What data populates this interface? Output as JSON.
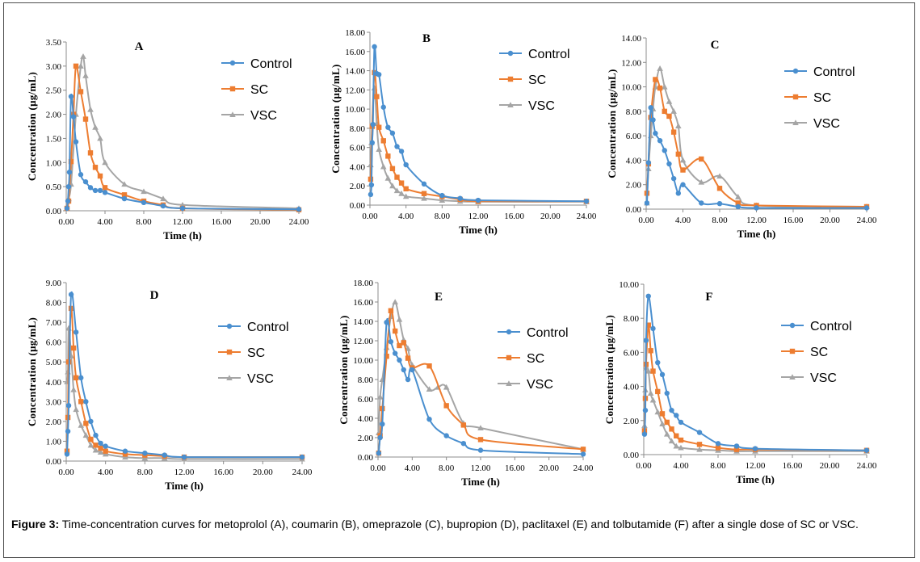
{
  "caption": {
    "label": "Figure 3:",
    "text": " Time-concentration curves for metoprolol (A), coumarin (B), omeprazole (C), bupropion (D), paclitaxel (E) and tolbutamide (F) after a single dose of SC or VSC."
  },
  "colors": {
    "Control": "#4a8fcf",
    "SC": "#ed7d31",
    "VSC": "#a5a5a5"
  },
  "chart_data": [
    {
      "type": "line",
      "title": "A",
      "xlabel": "Time (h)",
      "ylabel": "Concentration (μg/mL)",
      "xticks": [
        "0.00",
        "4.00",
        "8.00",
        "12.00",
        "16.00",
        "20.00",
        "24.00"
      ],
      "yticks": [
        "0.00",
        "0.50",
        "1.00",
        "1.50",
        "2.00",
        "2.50",
        "3.00",
        "3.50"
      ],
      "xlim": [
        0,
        24
      ],
      "ylim": [
        0,
        3.5
      ],
      "legend": [
        "Control",
        "SC",
        "VSC"
      ],
      "series": [
        {
          "name": "Control",
          "x": [
            0.08,
            0.17,
            0.25,
            0.33,
            0.5,
            0.75,
            1,
            1.5,
            2,
            2.5,
            3,
            3.5,
            4,
            6,
            8,
            10,
            12,
            24
          ],
          "y": [
            0.05,
            0.2,
            0.5,
            0.8,
            2.37,
            1.95,
            1.43,
            0.75,
            0.6,
            0.48,
            0.42,
            0.42,
            0.38,
            0.25,
            0.17,
            0.1,
            0.05,
            0.03
          ]
        },
        {
          "name": "SC",
          "x": [
            0.08,
            0.25,
            0.5,
            0.75,
            1,
            1.5,
            2,
            2.5,
            3,
            3.5,
            4,
            6,
            8,
            10,
            12,
            24
          ],
          "y": [
            0.05,
            0.2,
            1.02,
            2.0,
            3.0,
            2.47,
            1.9,
            1.2,
            0.9,
            0.72,
            0.48,
            0.33,
            0.2,
            0.12,
            0.05,
            0.02
          ]
        },
        {
          "name": "VSC",
          "x": [
            0.08,
            0.25,
            0.5,
            1,
            1.5,
            1.75,
            2,
            2.5,
            3,
            3.5,
            4,
            6,
            8,
            10,
            12,
            24
          ],
          "y": [
            0.05,
            0.25,
            0.55,
            2.0,
            3.0,
            3.2,
            2.8,
            2.1,
            1.73,
            1.5,
            1.0,
            0.55,
            0.4,
            0.25,
            0.12,
            0.05
          ]
        }
      ]
    },
    {
      "type": "line",
      "title": "B",
      "xlabel": "Time (h)",
      "ylabel": "Concentration (μg/mL)",
      "xticks": [
        "0.00",
        "4.00",
        "8.00",
        "12.00",
        "16.00",
        "20.00",
        "24.00"
      ],
      "yticks": [
        "0.00",
        "2.00",
        "4.00",
        "6.00",
        "8.00",
        "10.00",
        "12.00",
        "14.00",
        "16.00",
        "18.00"
      ],
      "xlim": [
        0,
        24
      ],
      "ylim": [
        0,
        18
      ],
      "legend": [
        "Control",
        "SC",
        "VSC"
      ],
      "series": [
        {
          "name": "Control",
          "x": [
            0.08,
            0.17,
            0.25,
            0.33,
            0.5,
            0.75,
            1,
            1.5,
            2,
            2.5,
            3,
            3.5,
            4,
            6,
            8,
            10,
            12,
            24
          ],
          "y": [
            1.1,
            2.1,
            6.5,
            8.4,
            16.5,
            13.7,
            13.6,
            10.2,
            8.1,
            7.5,
            6.1,
            5.6,
            4.2,
            2.2,
            1.0,
            0.7,
            0.5,
            0.4
          ]
        },
        {
          "name": "SC",
          "x": [
            0.08,
            0.25,
            0.5,
            0.75,
            1,
            1.5,
            2,
            2.5,
            3,
            3.5,
            4,
            6,
            8,
            10,
            12,
            24
          ],
          "y": [
            2.7,
            8.2,
            13.8,
            11.3,
            8.1,
            6.7,
            5.1,
            3.8,
            2.9,
            2.3,
            1.7,
            1.2,
            0.9,
            0.6,
            0.4,
            0.4
          ]
        },
        {
          "name": "VSC",
          "x": [
            0.08,
            0.17,
            0.25,
            0.5,
            0.75,
            1,
            1.5,
            2,
            2.5,
            3,
            3.5,
            4,
            6,
            8,
            10,
            12,
            24
          ],
          "y": [
            4.2,
            6.5,
            8.3,
            12.2,
            8.5,
            5.8,
            4.0,
            2.8,
            2.0,
            1.5,
            1.2,
            0.9,
            0.7,
            0.5,
            0.4,
            0.35,
            0.35
          ]
        }
      ]
    },
    {
      "type": "line",
      "title": "C",
      "xlabel": "Time (h)",
      "ylabel": "Concentration (μg/mL)",
      "xticks": [
        "0.00",
        "4.00",
        "8.00",
        "12.00",
        "16.00",
        "20.00",
        "24.00"
      ],
      "yticks": [
        "0.00",
        "2.00",
        "4.00",
        "6.00",
        "8.00",
        "10.00",
        "12.00",
        "14.00"
      ],
      "xlim": [
        0,
        24
      ],
      "ylim": [
        0,
        14
      ],
      "legend": [
        "Control",
        "SC",
        "VSC"
      ],
      "series": [
        {
          "name": "Control",
          "x": [
            0.08,
            0.25,
            0.5,
            0.75,
            1,
            1.5,
            2,
            2.5,
            3,
            3.5,
            4,
            6,
            8,
            10,
            12,
            24
          ],
          "y": [
            0.5,
            3.8,
            8.3,
            7.3,
            6.2,
            5.6,
            4.8,
            3.7,
            2.5,
            1.3,
            2.0,
            0.5,
            0.45,
            0.2,
            0.1,
            0.1
          ]
        },
        {
          "name": "SC",
          "x": [
            0.08,
            0.25,
            0.5,
            1,
            1.5,
            2,
            2.5,
            3,
            3.5,
            4,
            6,
            8,
            10,
            12,
            24
          ],
          "y": [
            1.3,
            3.7,
            7.5,
            10.6,
            9.9,
            8.0,
            7.6,
            6.3,
            4.5,
            3.2,
            4.1,
            1.7,
            0.5,
            0.3,
            0.2
          ]
        },
        {
          "name": "VSC",
          "x": [
            0.08,
            0.25,
            0.5,
            0.75,
            1,
            1.5,
            2,
            2.5,
            3,
            3.5,
            4,
            6,
            8,
            10,
            12,
            24
          ],
          "y": [
            0.5,
            3.3,
            6.0,
            8.2,
            10.0,
            11.5,
            10.0,
            8.8,
            8.0,
            6.8,
            4.0,
            2.2,
            2.7,
            1.0,
            0.3,
            0.2
          ]
        }
      ]
    },
    {
      "type": "line",
      "title": "D",
      "xlabel": "Time (h)",
      "ylabel": "Concentration (μg/mL)",
      "xticks": [
        "0.00",
        "4.00",
        "8.00",
        "12.00",
        "16.00",
        "20.00",
        "24.00"
      ],
      "yticks": [
        "0.00",
        "1.00",
        "2.00",
        "3.00",
        "4.00",
        "5.00",
        "6.00",
        "7.00",
        "8.00",
        "9.00"
      ],
      "xlim": [
        0,
        24
      ],
      "ylim": [
        0,
        9
      ],
      "legend": [
        "Control",
        "SC",
        "VSC"
      ],
      "series": [
        {
          "name": "Control",
          "x": [
            0.08,
            0.17,
            0.25,
            0.5,
            1,
            1.5,
            2,
            2.5,
            3,
            3.5,
            4,
            6,
            8,
            10,
            12,
            24
          ],
          "y": [
            0.35,
            1.5,
            2.8,
            8.4,
            6.5,
            4.2,
            3.0,
            2.0,
            1.3,
            0.9,
            0.75,
            0.5,
            0.4,
            0.3,
            0.2,
            0.2
          ]
        },
        {
          "name": "SC",
          "x": [
            0.08,
            0.17,
            0.25,
            0.5,
            0.75,
            1,
            1.5,
            2,
            2.5,
            3,
            3.5,
            4,
            6,
            8,
            10,
            12,
            24
          ],
          "y": [
            0.5,
            2.2,
            5.0,
            7.7,
            5.7,
            4.2,
            3.0,
            1.9,
            1.1,
            0.8,
            0.65,
            0.5,
            0.35,
            0.3,
            0.25,
            0.2,
            0.2
          ]
        },
        {
          "name": "VSC",
          "x": [
            0.08,
            0.17,
            0.25,
            0.5,
            0.75,
            1,
            1.5,
            2,
            2.5,
            3,
            3.5,
            4,
            6,
            8,
            10,
            12,
            24
          ],
          "y": [
            4.0,
            4.5,
            6.7,
            5.3,
            3.6,
            2.6,
            1.8,
            1.3,
            0.8,
            0.55,
            0.45,
            0.35,
            0.2,
            0.15,
            0.15,
            0.1,
            0.1
          ]
        }
      ]
    },
    {
      "type": "line",
      "title": "E",
      "xlabel": "Time (h)",
      "ylabel": "Concentration (μg/mL)",
      "xticks": [
        "0.00",
        "4.00",
        "8.00",
        "12.00",
        "16.00",
        "20.00",
        "24.00"
      ],
      "yticks": [
        "0.00",
        "2.00",
        "4.00",
        "6.00",
        "8.00",
        "10.00",
        "12.00",
        "14.00",
        "16.00",
        "18.00"
      ],
      "xlim": [
        0,
        24
      ],
      "ylim": [
        0,
        18
      ],
      "legend": [
        "Control",
        "SC",
        "VSC"
      ],
      "series": [
        {
          "name": "Control",
          "x": [
            0.08,
            0.25,
            0.5,
            1,
            1.5,
            2,
            2.5,
            3,
            3.5,
            4,
            6,
            8,
            10,
            12,
            24
          ],
          "y": [
            0.4,
            2.0,
            3.4,
            13.9,
            11.9,
            10.7,
            10.0,
            9.0,
            8.0,
            9.0,
            3.9,
            2.2,
            1.4,
            0.7,
            0.3
          ]
        },
        {
          "name": "SC",
          "x": [
            0.08,
            0.25,
            0.5,
            1,
            1.5,
            2,
            2.5,
            3,
            3.5,
            4,
            6,
            8,
            10,
            12,
            24
          ],
          "y": [
            0.4,
            2.2,
            5.0,
            10.4,
            15.1,
            13.0,
            11.5,
            11.8,
            10.2,
            9.2,
            9.4,
            5.3,
            3.3,
            1.8,
            0.8
          ]
        },
        {
          "name": "VSC",
          "x": [
            0.08,
            0.25,
            0.5,
            1,
            1.5,
            2,
            2.5,
            3,
            3.5,
            4,
            6,
            7,
            8,
            10,
            12,
            24
          ],
          "y": [
            2.5,
            6.2,
            8.0,
            11.3,
            14.5,
            16.0,
            14.2,
            12.1,
            11.2,
            9.5,
            7.0,
            7.2,
            7.2,
            3.5,
            3.0,
            0.8
          ]
        }
      ]
    },
    {
      "type": "line",
      "title": "F",
      "xlabel": "Time (h)",
      "ylabel": "Concentration (μg/mL)",
      "xticks": [
        "0.00",
        "4.00",
        "8.00",
        "12.00",
        "16.00",
        "20.00",
        "24.00"
      ],
      "yticks": [
        "0.00",
        "2.00",
        "4.00",
        "6.00",
        "8.00",
        "10.00"
      ],
      "xlim": [
        0,
        24
      ],
      "ylim": [
        0,
        10
      ],
      "legend": [
        "Control",
        "SC",
        "VSC"
      ],
      "series": [
        {
          "name": "Control",
          "x": [
            0.08,
            0.17,
            0.25,
            0.5,
            1,
            1.5,
            2,
            2.5,
            3,
            3.5,
            4,
            6,
            8,
            10,
            12,
            24
          ],
          "y": [
            1.2,
            2.6,
            6.7,
            9.3,
            7.4,
            5.4,
            4.7,
            3.6,
            2.6,
            2.3,
            1.9,
            1.3,
            0.65,
            0.5,
            0.35,
            0.25
          ]
        },
        {
          "name": "SC",
          "x": [
            0.08,
            0.17,
            0.25,
            0.5,
            0.75,
            1,
            1.5,
            2,
            2.5,
            3,
            3.5,
            4,
            6,
            8,
            10,
            12,
            24
          ],
          "y": [
            1.4,
            3.3,
            5.3,
            7.6,
            6.1,
            4.9,
            3.7,
            2.4,
            1.9,
            1.5,
            1.1,
            0.85,
            0.6,
            0.4,
            0.3,
            0.3,
            0.25
          ]
        },
        {
          "name": "VSC",
          "x": [
            0.08,
            0.17,
            0.25,
            0.5,
            0.75,
            1,
            1.5,
            2,
            2.5,
            3,
            3.5,
            4,
            6,
            8,
            10,
            12,
            24
          ],
          "y": [
            1.7,
            3.8,
            5.1,
            4.9,
            3.6,
            3.2,
            2.5,
            1.8,
            1.2,
            0.8,
            0.5,
            0.4,
            0.3,
            0.25,
            0.2,
            0.2,
            0.2
          ]
        }
      ]
    }
  ]
}
